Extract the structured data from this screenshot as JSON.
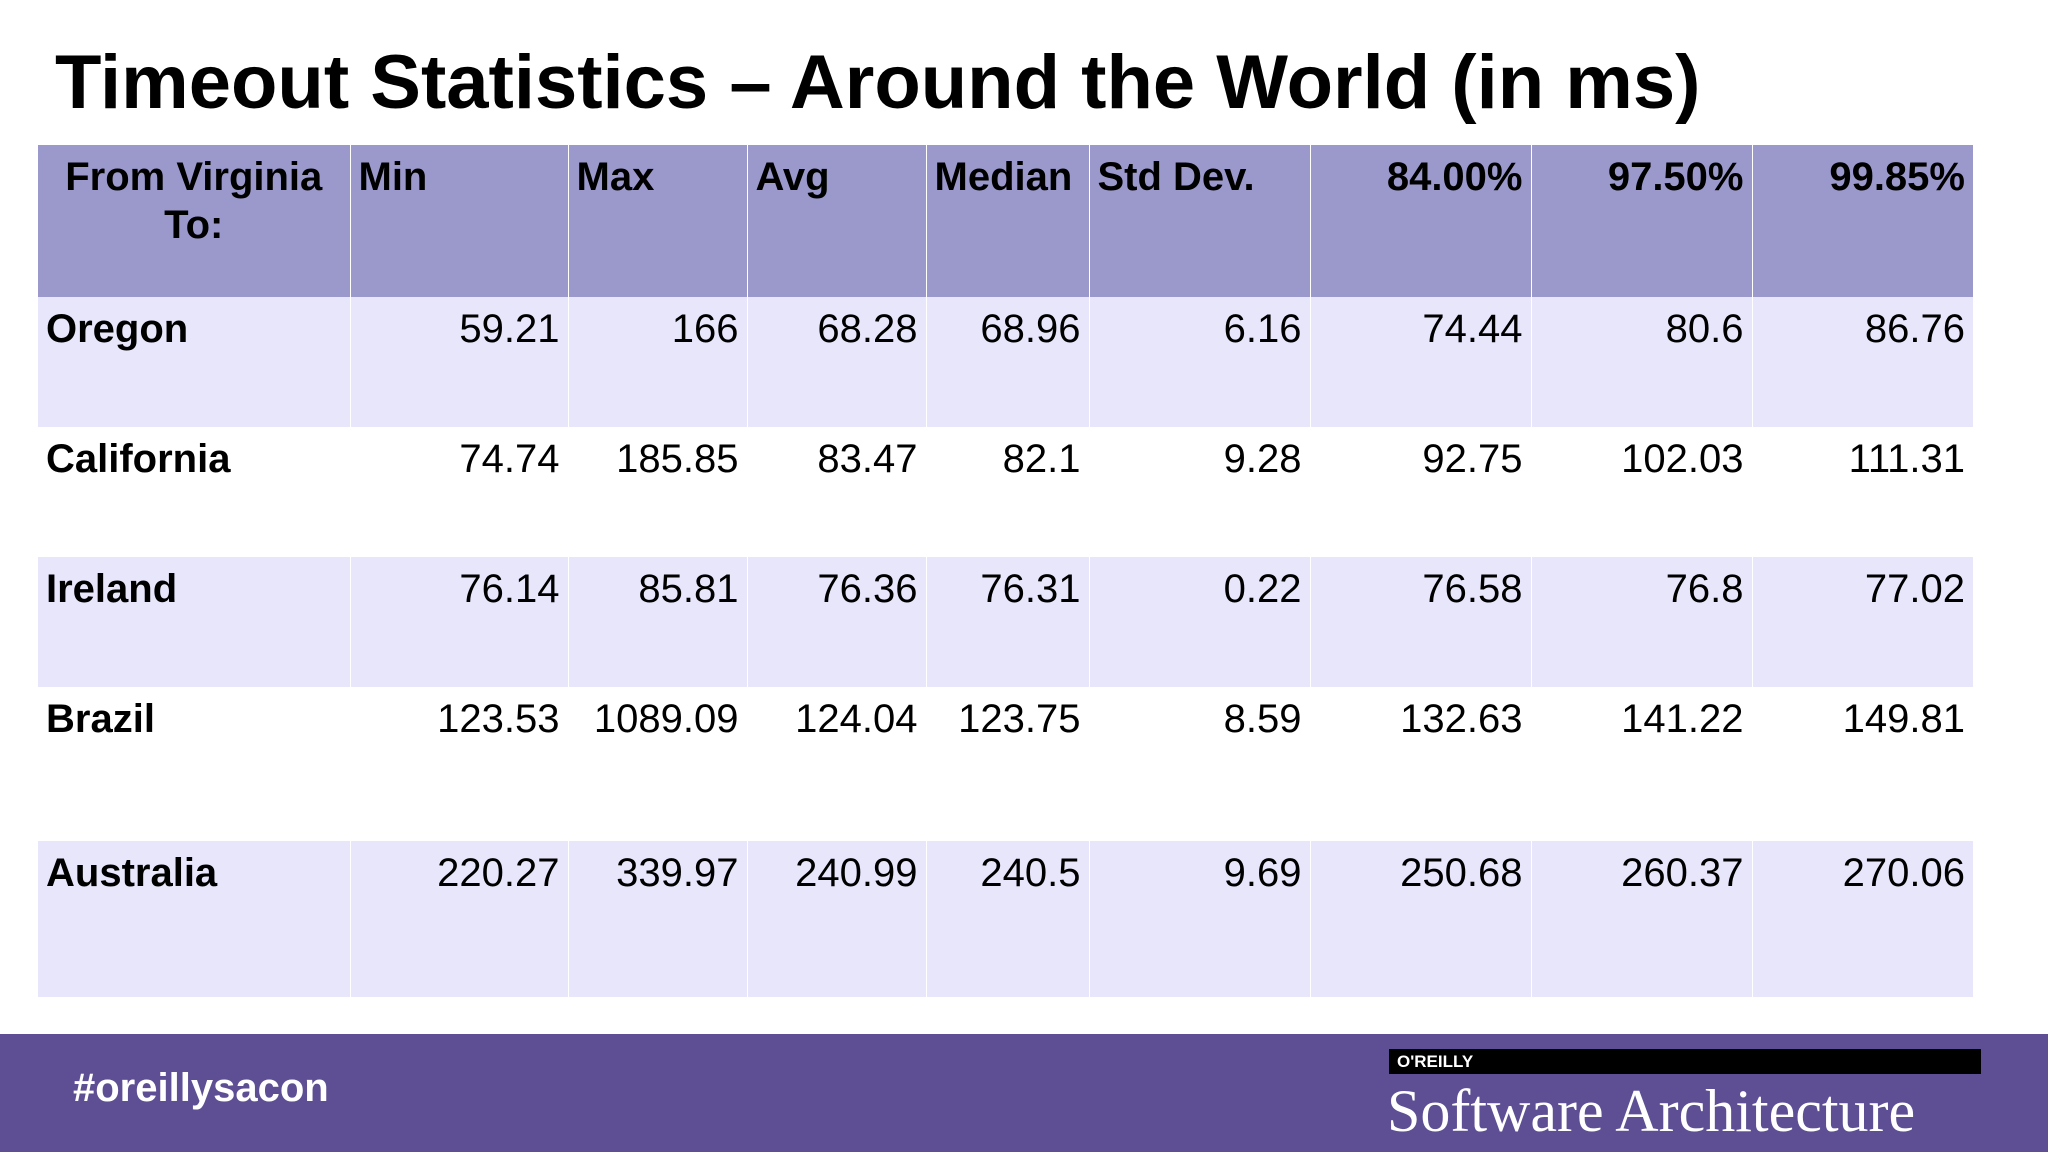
{
  "title": "Timeout Statistics – Around the World (in ms)",
  "table": {
    "headers": [
      "From Virginia To:",
      "Min",
      "Max",
      "Avg",
      "Median",
      "Std Dev.",
      "84.00%",
      "97.50%",
      "99.85%"
    ],
    "rows": [
      [
        "Oregon",
        "59.21",
        "166",
        "68.28",
        "68.96",
        "6.16",
        "74.44",
        "80.6",
        "86.76"
      ],
      [
        "California",
        "74.74",
        "185.85",
        "83.47",
        "82.1",
        "9.28",
        "92.75",
        "102.03",
        "111.31"
      ],
      [
        "Ireland",
        "76.14",
        "85.81",
        "76.36",
        "76.31",
        "0.22",
        "76.58",
        "76.8",
        "77.02"
      ],
      [
        "Brazil",
        "123.53",
        "1089.09",
        "124.04",
        "123.75",
        "8.59",
        "132.63",
        "141.22",
        "149.81"
      ],
      [
        "Australia",
        "220.27",
        "339.97",
        "240.99",
        "240.5",
        "9.69",
        "250.68",
        "260.37",
        "270.06"
      ]
    ]
  },
  "footer": {
    "hashtag": "#oreillysacon",
    "publisher": "O'REILLY",
    "product": "Software Architecture"
  },
  "colors": {
    "header_bg": "#9b99cc",
    "row_band": "#e7e6fb",
    "footer_bg": "#5e4f94"
  }
}
